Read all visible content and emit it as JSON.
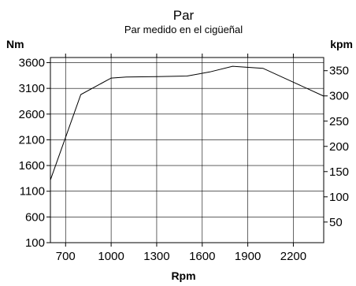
{
  "chart_data": {
    "type": "line",
    "title": "Par",
    "subtitle": "Par medido en el cigüeñal",
    "xlabel": "Rpm",
    "ylabel_left": "Nm",
    "ylabel_right": "kpm",
    "xlim": [
      600,
      2400
    ],
    "ylim_left": [
      100,
      3700
    ],
    "ylim_right": [
      9.13,
      376.1
    ],
    "x_ticks": [
      700,
      1000,
      1300,
      1600,
      1900,
      2200
    ],
    "y_ticks_left": [
      100,
      600,
      1100,
      1600,
      2100,
      2600,
      3100,
      3600
    ],
    "y_ticks_right": [
      50,
      100,
      150,
      200,
      250,
      300,
      350
    ],
    "grid": true,
    "series": [
      {
        "x": [
          600,
          800,
          1000,
          1100,
          1300,
          1500,
          1650,
          1800,
          2000,
          2200,
          2400
        ],
        "y": [
          1320,
          2980,
          3300,
          3320,
          3330,
          3340,
          3420,
          3530,
          3490,
          3220,
          2950
        ]
      }
    ]
  }
}
